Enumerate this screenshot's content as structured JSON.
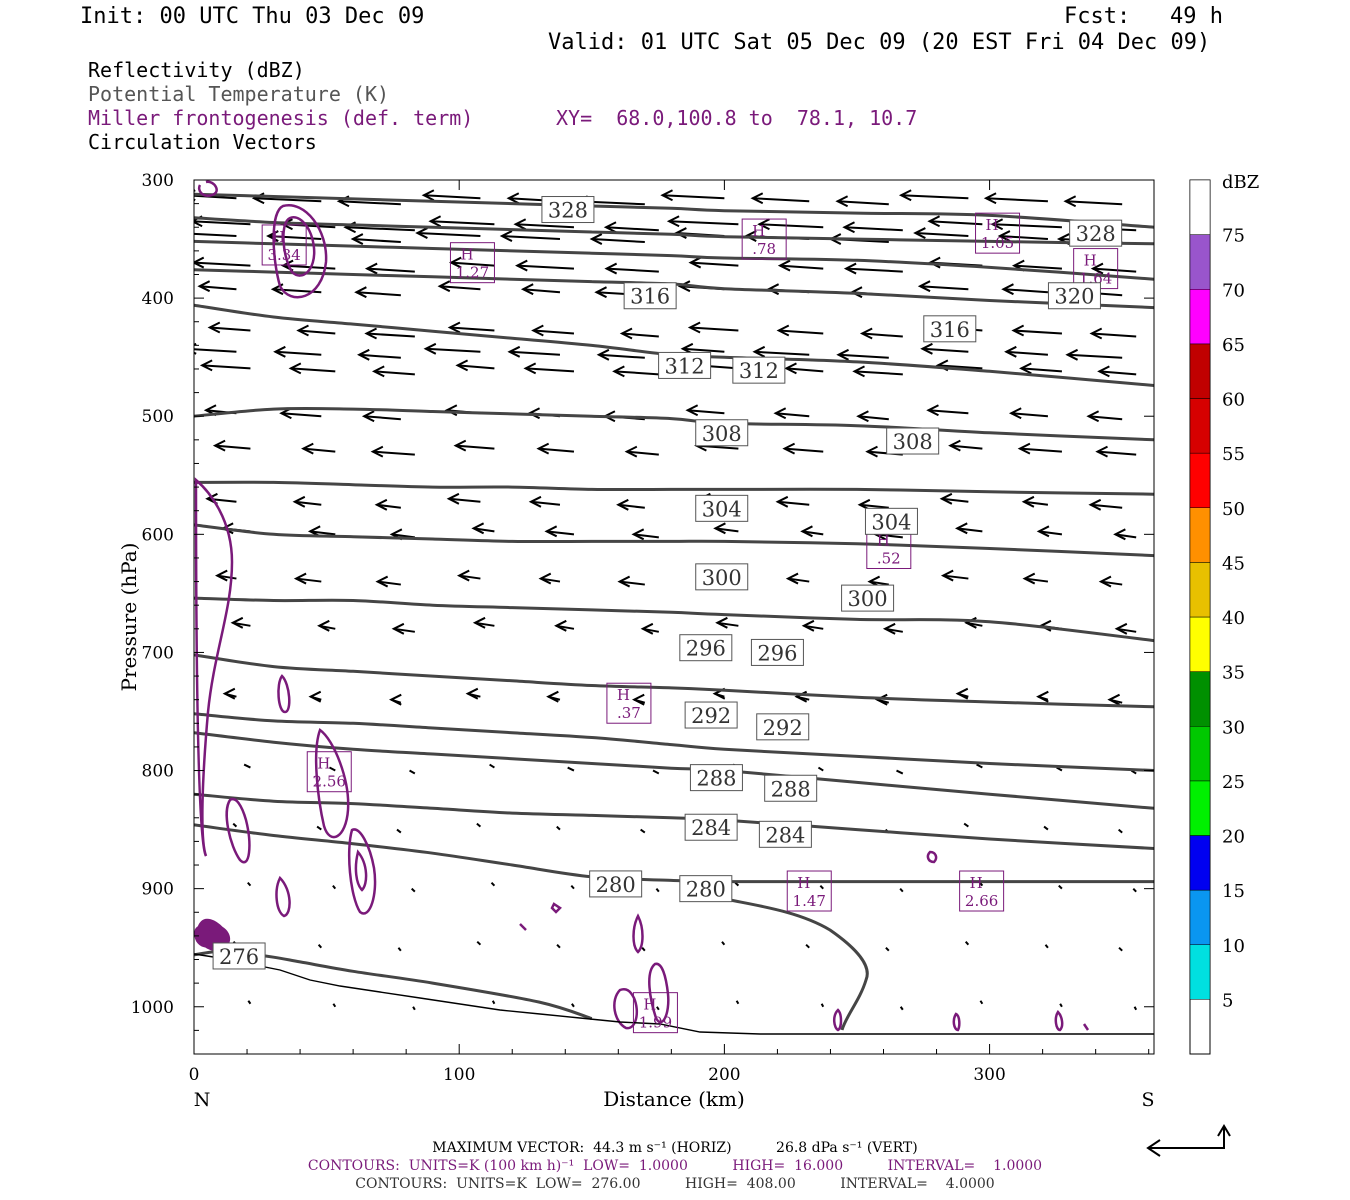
{
  "header": {
    "init": "Init: 00 UTC Thu 03 Dec 09",
    "fcst": "Fcst:   49 h",
    "valid": "Valid: 01 UTC Sat 05 Dec 09 (20 EST Fri 04 Dec 09)",
    "fields": [
      {
        "text": "Reflectivity (dBZ)",
        "color": "#000000"
      },
      {
        "text": "Potential Temperature (K)",
        "color": "#555555"
      },
      {
        "text": "Miller frontogenesis (def. term)",
        "color": "#7a1a7a"
      },
      {
        "text": "Circulation Vectors",
        "color": "#000000"
      }
    ],
    "xy": "XY=  68.0,100.8 to  78.1, 10.7"
  },
  "chart_data": {
    "type": "line",
    "xlabel": "Distance (km)",
    "ylabel": "Pressure (hPa)",
    "xlim": [
      0,
      362
    ],
    "ylim": [
      300,
      1040
    ],
    "x_ticks": [
      0,
      100,
      200,
      300
    ],
    "y_ticks": [
      300,
      400,
      500,
      600,
      700,
      800,
      900,
      1000
    ],
    "x_end_left": "N",
    "x_end_right": "S",
    "theta_contours": [
      {
        "value": 276,
        "x": [
          0,
          10,
          20,
          30,
          40,
          60,
          90,
          130,
          150
        ],
        "p": [
          956,
          953,
          955,
          958,
          962,
          970,
          980,
          996,
          1010
        ]
      },
      {
        "value": 280,
        "x": [
          0,
          30,
          60,
          90,
          120,
          150,
          180,
          200,
          250,
          300,
          362
        ],
        "p": [
          846,
          855,
          862,
          870,
          880,
          890,
          893,
          894,
          894,
          894,
          894
        ]
      },
      {
        "value": 284,
        "x": [
          0,
          30,
          60,
          90,
          120,
          150,
          180,
          200,
          250,
          300,
          362
        ],
        "p": [
          820,
          826,
          828,
          832,
          836,
          838,
          840,
          842,
          850,
          858,
          866
        ]
      },
      {
        "value": 288,
        "x": [
          0,
          30,
          60,
          90,
          120,
          150,
          180,
          200,
          250,
          300,
          362
        ],
        "p": [
          768,
          776,
          782,
          786,
          790,
          794,
          798,
          800,
          810,
          820,
          832
        ]
      },
      {
        "value": 292,
        "x": [
          0,
          30,
          60,
          90,
          120,
          150,
          180,
          200,
          250,
          300,
          362
        ],
        "p": [
          752,
          758,
          760,
          764,
          768,
          772,
          778,
          782,
          788,
          794,
          800
        ]
      },
      {
        "value": 296,
        "x": [
          0,
          30,
          60,
          90,
          120,
          150,
          180,
          200,
          250,
          300,
          362
        ],
        "p": [
          702,
          712,
          716,
          720,
          724,
          728,
          730,
          732,
          738,
          742,
          746
        ]
      },
      {
        "value": 300,
        "x": [
          0,
          30,
          60,
          90,
          120,
          150,
          180,
          200,
          250,
          300,
          362
        ],
        "p": [
          654,
          656,
          656,
          660,
          662,
          664,
          666,
          668,
          672,
          674,
          690
        ]
      },
      {
        "value": 304,
        "x": [
          0,
          30,
          60,
          90,
          120,
          150,
          180,
          200,
          250,
          300,
          362
        ],
        "p": [
          592,
          600,
          602,
          604,
          606,
          606,
          606,
          606,
          608,
          612,
          618
        ]
      },
      {
        "value": 308,
        "x": [
          0,
          30,
          60,
          90,
          120,
          150,
          180,
          200,
          250,
          300,
          362
        ],
        "p": [
          556,
          556,
          558,
          560,
          560,
          562,
          562,
          562,
          562,
          564,
          566
        ]
      },
      {
        "value": 312,
        "x": [
          0,
          30,
          60,
          90,
          120,
          150,
          180,
          200,
          250,
          300,
          362
        ],
        "p": [
          500,
          494,
          494,
          496,
          498,
          500,
          502,
          506,
          508,
          514,
          520
        ]
      },
      {
        "value": 316,
        "x": [
          0,
          30,
          60,
          90,
          120,
          150,
          180,
          200,
          250,
          300,
          362
        ],
        "p": [
          406,
          416,
          422,
          428,
          434,
          440,
          448,
          450,
          454,
          462,
          474
        ]
      },
      {
        "value": 320,
        "x": [
          0,
          30,
          60,
          90,
          120,
          150,
          180,
          200,
          250,
          300,
          362
        ],
        "p": [
          376,
          378,
          380,
          382,
          384,
          386,
          388,
          392,
          396,
          402,
          408
        ]
      },
      {
        "value": 324,
        "x": [
          0,
          30,
          60,
          90,
          120,
          150,
          180,
          200,
          250,
          300,
          362
        ],
        "p": [
          352,
          354,
          356,
          358,
          360,
          362,
          364,
          366,
          368,
          374,
          384
        ]
      },
      {
        "value": 328,
        "x": [
          0,
          30,
          60,
          90,
          120,
          150,
          180,
          200,
          250,
          300,
          362
        ],
        "p": [
          332,
          336,
          338,
          340,
          342,
          344,
          346,
          348,
          350,
          352,
          354
        ]
      },
      {
        "value": 332,
        "x": [
          0,
          30,
          60,
          90,
          120,
          150,
          180,
          200,
          250,
          300,
          362
        ],
        "p": [
          312,
          314,
          316,
          318,
          320,
          322,
          324,
          326,
          328,
          330,
          340
        ]
      }
    ],
    "theta_labels": [
      {
        "text": "328",
        "x": 141,
        "p": 325
      },
      {
        "text": "328",
        "x": 340,
        "p": 345
      },
      {
        "text": "316",
        "x": 172,
        "p": 398
      },
      {
        "text": "320",
        "x": 332,
        "p": 398
      },
      {
        "text": "316",
        "x": 285,
        "p": 426
      },
      {
        "text": "312",
        "x": 185,
        "p": 457
      },
      {
        "text": "312",
        "x": 213,
        "p": 461
      },
      {
        "text": "308",
        "x": 199,
        "p": 514
      },
      {
        "text": "308",
        "x": 271,
        "p": 521
      },
      {
        "text": "304",
        "x": 199,
        "p": 578
      },
      {
        "text": "304",
        "x": 263,
        "p": 589
      },
      {
        "text": "300",
        "x": 199,
        "p": 636
      },
      {
        "text": "300",
        "x": 254,
        "p": 654
      },
      {
        "text": "296",
        "x": 193,
        "p": 696
      },
      {
        "text": "296",
        "x": 220,
        "p": 700
      },
      {
        "text": "292",
        "x": 195,
        "p": 753
      },
      {
        "text": "292",
        "x": 222,
        "p": 763
      },
      {
        "text": "288",
        "x": 197,
        "p": 806
      },
      {
        "text": "288",
        "x": 225,
        "p": 815
      },
      {
        "text": "284",
        "x": 195,
        "p": 848
      },
      {
        "text": "284",
        "x": 223,
        "p": 854
      },
      {
        "text": "280",
        "x": 159,
        "p": 896
      },
      {
        "text": "280",
        "x": 193,
        "p": 900
      },
      {
        "text": "276",
        "x": 17,
        "p": 957
      }
    ],
    "frontogenesis_maxima": [
      {
        "letter": "H",
        "value": "3.34",
        "x": 34,
        "p": 355
      },
      {
        "letter": "H",
        "value": "1.27",
        "x": 105,
        "p": 370
      },
      {
        "letter": "H",
        "value": ".78",
        "x": 215,
        "p": 350
      },
      {
        "letter": "H",
        "value": "1.05",
        "x": 303,
        "p": 345
      },
      {
        "letter": "H",
        "value": "1.64",
        "x": 340,
        "p": 375
      },
      {
        "letter": "H",
        "value": ".52",
        "x": 262,
        "p": 612
      },
      {
        "letter": "H",
        "value": ".37",
        "x": 164,
        "p": 743
      },
      {
        "letter": "H",
        "value": "2.56",
        "x": 51,
        "p": 801
      },
      {
        "letter": "H",
        "value": "1.47",
        "x": 232,
        "p": 902
      },
      {
        "letter": "H",
        "value": "2.66",
        "x": 297,
        "p": 902
      },
      {
        "letter": "H",
        "value": "1.99",
        "x": 174,
        "p": 1005
      }
    ],
    "colorbar": {
      "label": "dBZ",
      "levels": [
        "5",
        "10",
        "15",
        "20",
        "25",
        "30",
        "35",
        "40",
        "45",
        "50",
        "55",
        "60",
        "65",
        "70",
        "75"
      ],
      "colors": [
        "#00e0e0",
        "#0a96f0",
        "#0000f0",
        "#00f000",
        "#00c800",
        "#009000",
        "#ffff00",
        "#e8c000",
        "#ff9000",
        "#ff0000",
        "#d60000",
        "#c00000",
        "#ff00ff",
        "#9955cc",
        "#ffffff"
      ]
    }
  },
  "footer": {
    "line1": "MAXIMUM VECTOR:  44.3 m s⁻¹ (HORIZ)          26.8 dPa s⁻¹ (VERT)",
    "line2": "CONTOURS:  UNITS=K (100 km h)⁻¹  LOW=  1.0000          HIGH=  16.000          INTERVAL=    1.0000",
    "line3": "CONTOURS:  UNITS=K  LOW=  276.00          HIGH=  408.00          INTERVAL=    4.0000"
  },
  "colors": {
    "theta": "#454545",
    "frontogenesis": "#7a1a7a",
    "vectors": "#000000"
  }
}
